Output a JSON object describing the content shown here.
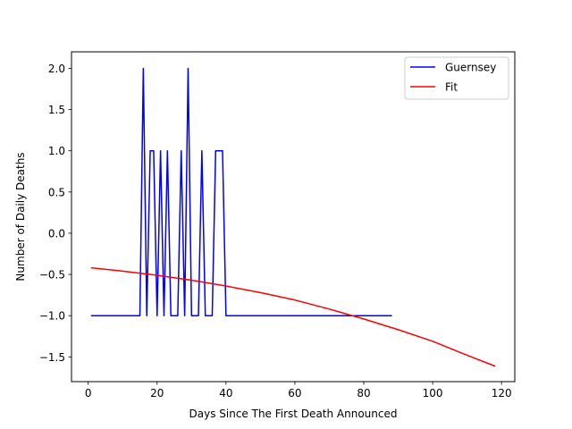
{
  "chart_data": {
    "type": "line",
    "title": "",
    "xlabel": "Days Since The First Death Announced",
    "ylabel": "Number of Daily Deaths",
    "xlim": [
      -4.85,
      123.85
    ],
    "ylim": [
      -1.8,
      2.2
    ],
    "xticks": [
      0,
      20,
      40,
      60,
      80,
      100,
      120
    ],
    "yticks": [
      -1.5,
      -1.0,
      -0.5,
      0.0,
      0.5,
      1.0,
      1.5,
      2.0
    ],
    "xtick_labels": [
      "0",
      "20",
      "40",
      "60",
      "80",
      "100",
      "120"
    ],
    "ytick_labels": [
      "−1.5",
      "−1.0",
      "−0.5",
      "0.0",
      "0.5",
      "1.0",
      "1.5",
      "2.0"
    ],
    "grid": false,
    "legend": {
      "position": "top-right"
    },
    "series": [
      {
        "name": "Guernsey",
        "color": "#0000ff",
        "x": [
          1,
          2,
          3,
          4,
          5,
          6,
          7,
          8,
          9,
          10,
          11,
          12,
          13,
          14,
          15,
          16,
          17,
          18,
          19,
          20,
          21,
          22,
          23,
          24,
          25,
          26,
          27,
          28,
          29,
          30,
          31,
          32,
          33,
          34,
          35,
          36,
          37,
          38,
          39,
          40,
          41,
          42,
          43,
          44,
          45,
          46,
          47,
          48,
          49,
          50,
          51,
          52,
          53,
          54,
          55,
          56,
          57,
          58,
          59,
          60,
          61,
          62,
          63,
          64,
          65,
          66,
          67,
          68,
          69,
          70,
          71,
          72,
          73,
          74,
          75,
          76,
          77,
          78,
          79,
          80,
          81,
          82,
          83,
          84,
          85,
          86,
          87,
          88
        ],
        "y": [
          -1,
          -1,
          -1,
          -1,
          -1,
          -1,
          -1,
          -1,
          -1,
          -1,
          -1,
          -1,
          -1,
          -1,
          -1,
          2,
          -1,
          1,
          1,
          -1,
          1,
          -1,
          1,
          -1,
          -1,
          -1,
          1,
          -1,
          2,
          -1,
          -1,
          -1,
          1,
          -1,
          -1,
          -1,
          1,
          1,
          1,
          -1,
          -1,
          -1,
          -1,
          -1,
          -1,
          -1,
          -1,
          -1,
          -1,
          -1,
          -1,
          -1,
          -1,
          -1,
          -1,
          -1,
          -1,
          -1,
          -1,
          -1,
          -1,
          -1,
          -1,
          -1,
          -1,
          -1,
          -1,
          -1,
          -1,
          -1,
          -1,
          -1,
          -1,
          -1,
          -1,
          -1,
          -1,
          -1,
          -1,
          -1,
          -1,
          -1,
          -1,
          -1,
          -1,
          -1,
          -1,
          -1
        ]
      },
      {
        "name": "Fit",
        "color": "#ff0000",
        "x": [
          1,
          10,
          20,
          30,
          40,
          50,
          60,
          70,
          80,
          90,
          100,
          110,
          118
        ],
        "y": [
          -0.42,
          -0.46,
          -0.51,
          -0.57,
          -0.64,
          -0.72,
          -0.81,
          -0.92,
          -1.04,
          -1.17,
          -1.31,
          -1.48,
          -1.61
        ]
      }
    ]
  }
}
